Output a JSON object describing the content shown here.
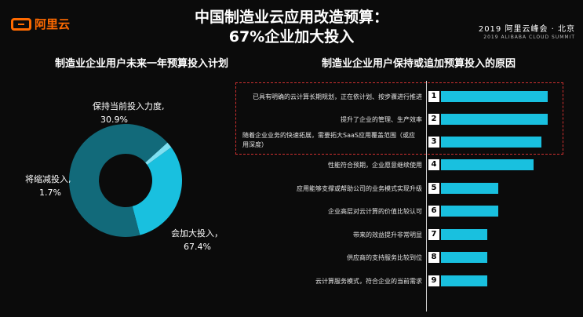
{
  "header": {
    "logo_text": "阿里云",
    "title_line1": "中国制造业云应用改造预算：",
    "title_line2": "67%企业加大投入",
    "summit_line1": "2019 阿里云峰会 · 北京",
    "summit_line2": "2019 ALIBABA CLOUD SUMMIT"
  },
  "colors": {
    "accent": "#ff6a00",
    "bar": "#19c0df",
    "donut_dark": "#126a7a",
    "donut_light": "#19c0df",
    "donut_small": "#7fe0f2"
  },
  "chart_data": [
    {
      "type": "pie",
      "title": "制造业企业用户未来一年预算投入计划",
      "slices": [
        {
          "label_line1": "保持当前投入力度,",
          "value_text": "30.9%",
          "value": 30.9,
          "color": "#19c0df"
        },
        {
          "label_line1": "会加大投入，",
          "value_text": "67.4%",
          "value": 67.4,
          "color": "#126a7a"
        },
        {
          "label_line1": "将缩减投入,",
          "value_text": "1.7%",
          "value": 1.7,
          "color": "#7fe0f2"
        }
      ]
    },
    {
      "type": "bar",
      "title": "制造业企业用户保持或追加预算投入的原因",
      "categories": [
        "已具有明确的云计算长期规划，正在依计划、按步骤进行推进",
        "提升了企业的管理、生产效率",
        "随着企业业务的快速拓展，需要拓大SaaS应用覆盖范围（或应用深度）",
        "性能符合预期，企业愿意继续使用",
        "应用能够支撑或帮助公司的业务模式实现升级",
        "企业高层对云计算的价值比较认可",
        "带来的效益提升非常明显",
        "供应商的支持服务比较到位",
        "云计算服务模式，符合企业的当前需求"
      ],
      "ranks": [
        "1",
        "2",
        "3",
        "4",
        "5",
        "6",
        "7",
        "8",
        "9"
      ],
      "values": [
        9,
        9,
        8.5,
        7.8,
        4.8,
        4.8,
        3.9,
        3.9,
        3.9
      ]
    }
  ]
}
